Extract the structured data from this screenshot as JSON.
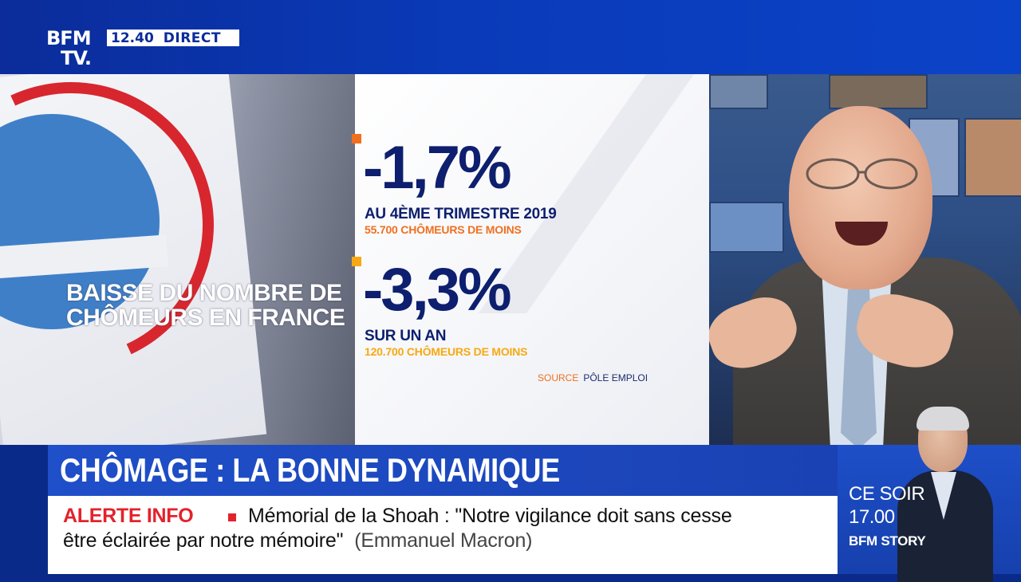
{
  "header": {
    "logo_line1": "BFM",
    "logo_line2": "TV.",
    "time": "12.40",
    "live_label": "DIRECT"
  },
  "left_panel": {
    "headline": "BAISSE DU NOMBRE DE CHÔMEURS EN FRANCE"
  },
  "stats": {
    "stat1": {
      "value": "-1,7%",
      "label": "AU 4ÈME TRIMESTRE 2019",
      "detail": "55.700 CHÔMEURS DE MOINS",
      "marker_color": "#f07020"
    },
    "stat2": {
      "value": "-3,3%",
      "label": "SUR UN AN",
      "detail": "120.700 CHÔMEURS DE MOINS",
      "marker_color": "#f6a912"
    },
    "source_label": "SOURCE",
    "source_value": "PÔLE EMPLOI"
  },
  "banner": {
    "title": "CHÔMAGE : LA BONNE DYNAMIQUE"
  },
  "ticker": {
    "label": "ALERTE INFO",
    "line1": "Mémorial de la Shoah : \"Notre vigilance doit sans cesse",
    "line2": "être éclairée par notre mémoire\"",
    "author": "(Emmanuel Macron)"
  },
  "promo": {
    "line1": "CE SOIR",
    "line2": "17.00",
    "show": "BFM STORY"
  },
  "colors": {
    "brand_blue": "#1f4fc9",
    "navy": "#0d1f6e",
    "alert_red": "#e3222b",
    "orange": "#f07020",
    "yellow": "#f6a912"
  }
}
